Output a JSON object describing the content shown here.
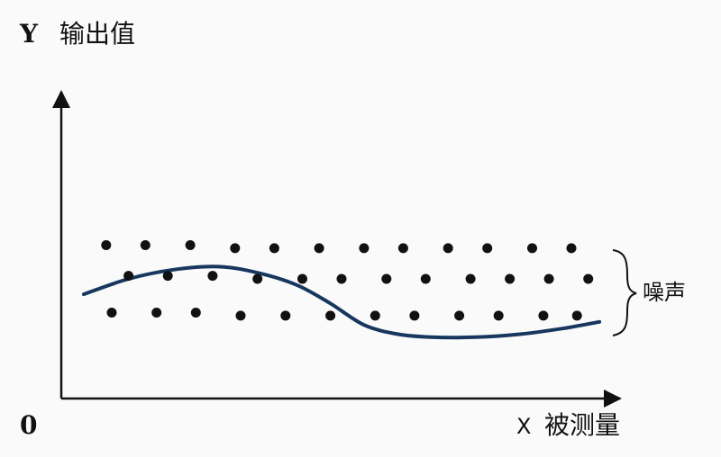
{
  "chart_data": {
    "type": "scatter",
    "y_axis": {
      "letter": "Y",
      "label": "输出值"
    },
    "x_axis": {
      "letter": "X",
      "label": "被测量"
    },
    "origin_label": "0",
    "annotation": "噪声",
    "xlim": [
      0,
      100
    ],
    "ylim": [
      0,
      100
    ],
    "grid": false,
    "colors": {
      "points": "#111111",
      "curve": "#17375e",
      "axis": "#111111"
    },
    "curve": {
      "x": [
        4,
        12,
        20,
        28,
        35,
        42,
        48,
        54,
        60,
        66,
        74,
        82,
        90,
        96
      ],
      "y": [
        34,
        39,
        42,
        43,
        41,
        37,
        31,
        24,
        21,
        20,
        20,
        21,
        23,
        25
      ]
    },
    "points": [
      {
        "x": 8,
        "y": 50
      },
      {
        "x": 15,
        "y": 50
      },
      {
        "x": 23,
        "y": 50
      },
      {
        "x": 31,
        "y": 49
      },
      {
        "x": 38,
        "y": 49
      },
      {
        "x": 46,
        "y": 49
      },
      {
        "x": 54,
        "y": 49
      },
      {
        "x": 61,
        "y": 49
      },
      {
        "x": 69,
        "y": 49
      },
      {
        "x": 76,
        "y": 49
      },
      {
        "x": 84,
        "y": 49
      },
      {
        "x": 91,
        "y": 49
      },
      {
        "x": 12,
        "y": 40
      },
      {
        "x": 19,
        "y": 40
      },
      {
        "x": 27,
        "y": 40
      },
      {
        "x": 35,
        "y": 39
      },
      {
        "x": 43,
        "y": 39
      },
      {
        "x": 50,
        "y": 39
      },
      {
        "x": 58,
        "y": 39
      },
      {
        "x": 65,
        "y": 39
      },
      {
        "x": 73,
        "y": 39
      },
      {
        "x": 80,
        "y": 39
      },
      {
        "x": 87,
        "y": 39
      },
      {
        "x": 94,
        "y": 39
      },
      {
        "x": 9,
        "y": 28
      },
      {
        "x": 17,
        "y": 28
      },
      {
        "x": 24,
        "y": 28
      },
      {
        "x": 32,
        "y": 27
      },
      {
        "x": 40,
        "y": 27
      },
      {
        "x": 48,
        "y": 27
      },
      {
        "x": 56,
        "y": 27
      },
      {
        "x": 63,
        "y": 27
      },
      {
        "x": 71,
        "y": 27
      },
      {
        "x": 78,
        "y": 27
      },
      {
        "x": 86,
        "y": 27
      },
      {
        "x": 92,
        "y": 27
      }
    ]
  }
}
